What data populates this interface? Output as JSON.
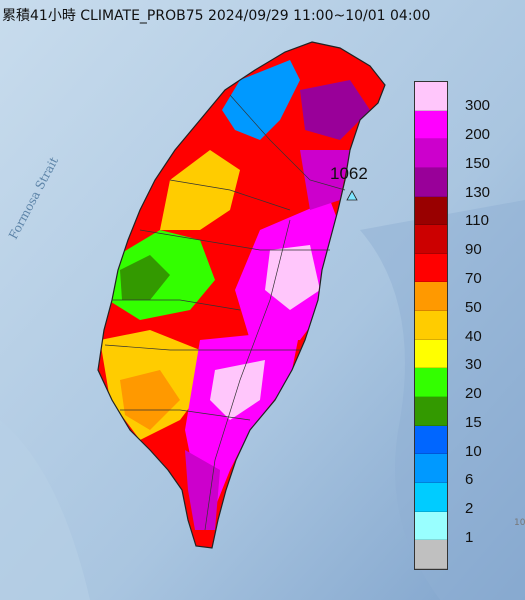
{
  "title": "累積41小時 CLIMATE_PROB75 2024/09/29 11:00~10/01 04:00",
  "sea_label": "Formosa Strait",
  "max_station_value": "1062",
  "corner_mark": "10",
  "legend": [
    {
      "label": "300",
      "color": "#ffc6fb"
    },
    {
      "label": "200",
      "color": "#ff00ff"
    },
    {
      "label": "150",
      "color": "#cc00cc"
    },
    {
      "label": "130",
      "color": "#990099"
    },
    {
      "label": "110",
      "color": "#990000"
    },
    {
      "label": "90",
      "color": "#cc0000"
    },
    {
      "label": "70",
      "color": "#ff0000"
    },
    {
      "label": "50",
      "color": "#ff9900"
    },
    {
      "label": "40",
      "color": "#ffcc00"
    },
    {
      "label": "30",
      "color": "#ffff00"
    },
    {
      "label": "20",
      "color": "#33ff00"
    },
    {
      "label": "15",
      "color": "#339900"
    },
    {
      "label": "10",
      "color": "#0066ff"
    },
    {
      "label": "6",
      "color": "#0099ff"
    },
    {
      "label": "2",
      "color": "#00ccff"
    },
    {
      "label": "1",
      "color": "#99ffff"
    },
    {
      "label": "",
      "color": "#c0c0c0"
    }
  ]
}
